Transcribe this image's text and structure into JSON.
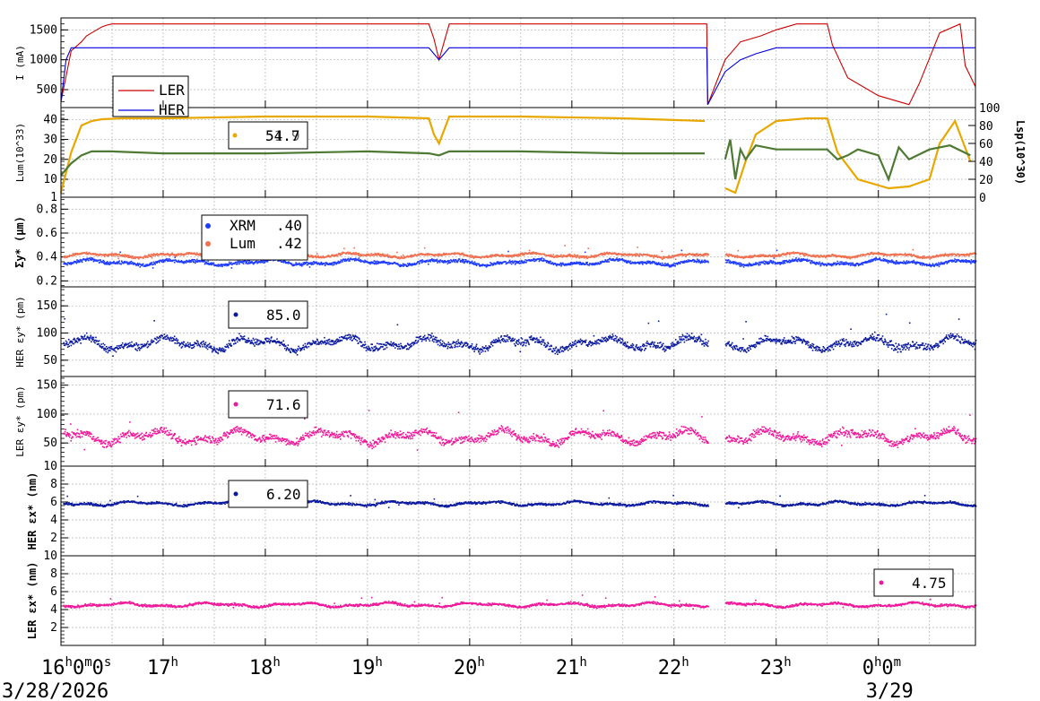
{
  "chart_data": [
    {
      "type": "line",
      "panel": "current",
      "ylabel": "I (mA)",
      "yticks": [
        500,
        1000,
        1500
      ],
      "ylim": [
        200,
        1700
      ],
      "series": [
        {
          "name": "LER",
          "color": "#cc0000",
          "x": [
            16.0,
            16.1,
            16.2,
            16.25,
            16.3,
            16.35,
            16.4,
            16.45,
            16.5,
            16.7,
            19.6,
            19.65,
            19.7,
            19.75,
            19.8,
            22.32,
            22.33,
            22.5,
            22.65,
            22.85,
            23.0,
            23.2,
            23.5,
            23.55,
            23.7,
            24.0,
            24.3,
            24.4,
            24.6,
            24.8,
            24.85,
            24.95
          ],
          "y": [
            300,
            1150,
            1300,
            1400,
            1450,
            1500,
            1550,
            1580,
            1600,
            1600,
            1600,
            1350,
            1000,
            1300,
            1600,
            1600,
            250,
            1000,
            1300,
            1400,
            1500,
            1600,
            1600,
            1250,
            700,
            400,
            250,
            600,
            1450,
            1600,
            900,
            550
          ]
        },
        {
          "name": "HER",
          "color": "#0000dd",
          "x": [
            16.0,
            16.05,
            16.1,
            16.2,
            16.25,
            19.6,
            19.65,
            19.7,
            19.75,
            19.8,
            22.32,
            22.33,
            22.5,
            22.65,
            22.8,
            23.0,
            24.95
          ],
          "y": [
            300,
            1000,
            1200,
            1200,
            1200,
            1200,
            1100,
            1000,
            1100,
            1200,
            1200,
            250,
            800,
            1000,
            1100,
            1200,
            1200
          ]
        }
      ]
    },
    {
      "type": "line",
      "panel": "luminosity",
      "ylabel": "Lum(10^33)",
      "yticks": [
        1,
        10,
        20,
        30,
        40
      ],
      "ylim": [
        1,
        46
      ],
      "y2label": "Lsp(10^30)",
      "y2ticks": [
        0,
        20,
        40,
        60,
        80,
        100
      ],
      "legend_values": [
        "54.7",
        "51.9"
      ],
      "series": [
        {
          "name": "Lsp",
          "color": "#e8a800",
          "axis": "right",
          "x": [
            16.0,
            16.1,
            16.2,
            16.3,
            16.4,
            16.6,
            17.0,
            18.0,
            19.0,
            19.6,
            19.65,
            19.7,
            19.8,
            20.5,
            21.5,
            22.3
          ],
          "y": [
            5,
            50,
            80,
            85,
            87,
            88,
            88,
            90,
            90,
            88,
            70,
            60,
            90,
            90,
            88,
            85
          ]
        },
        {
          "name": "Lum",
          "color": "#4e7a33",
          "axis": "left",
          "x": [
            16.0,
            16.1,
            16.2,
            16.3,
            16.5,
            17.0,
            18.0,
            19.0,
            19.6,
            19.7,
            19.8,
            20.5,
            21.5,
            22.3
          ],
          "y": [
            12,
            18,
            22,
            24,
            24,
            23,
            23,
            24,
            23,
            22,
            24,
            24,
            23,
            23
          ]
        },
        {
          "name": "Lsp-b",
          "color": "#e8a800",
          "axis": "right",
          "x": [
            22.5,
            22.6,
            22.7,
            22.8,
            23.0,
            23.3,
            23.5,
            23.6,
            23.8,
            24.1,
            24.3,
            24.5,
            24.6,
            24.75,
            24.9
          ],
          "y": [
            10,
            5,
            40,
            70,
            85,
            88,
            88,
            50,
            20,
            10,
            12,
            20,
            60,
            85,
            40
          ]
        },
        {
          "name": "Lum-b",
          "color": "#4e7a33",
          "axis": "left",
          "x": [
            22.5,
            22.55,
            22.6,
            22.65,
            22.7,
            22.8,
            23.0,
            23.5,
            23.6,
            23.7,
            23.8,
            24.0,
            24.1,
            24.2,
            24.3,
            24.5,
            24.7,
            24.9
          ],
          "y": [
            20,
            30,
            10,
            25,
            20,
            27,
            25,
            25,
            20,
            22,
            25,
            22,
            10,
            26,
            20,
            25,
            27,
            22
          ]
        }
      ]
    },
    {
      "type": "scatter",
      "panel": "sigma_y",
      "ylabel": "Σy* (µm)",
      "yticks": [
        0.2,
        0.4,
        0.6,
        0.8
      ],
      "ylim": [
        0.15,
        0.9
      ],
      "series": [
        {
          "name": "XRM",
          "color": "#1f3cff",
          "value": ".40",
          "base": 0.36,
          "noise": 0.02
        },
        {
          "name": "Lum",
          "color": "#f07050",
          "value": ".42",
          "base": 0.42,
          "noise": 0.015
        }
      ]
    },
    {
      "type": "scatter",
      "panel": "her_eps_y",
      "ylabel": "HER εy* (pm)",
      "yticks": [
        50,
        100,
        150
      ],
      "ylim": [
        20,
        185
      ],
      "value": "85.0",
      "series": [
        {
          "name": "HER εy*",
          "color": "#0b1a9e",
          "base": 82,
          "noise": 10
        }
      ]
    },
    {
      "type": "scatter",
      "panel": "ler_eps_y",
      "ylabel": "LER εy* (pm)",
      "yticks": [
        10,
        50,
        100,
        150
      ],
      "ylim": [
        10,
        165
      ],
      "value": "71.6",
      "series": [
        {
          "name": "LER εy*",
          "color": "#f0189a",
          "base": 62,
          "noise": 10
        }
      ]
    },
    {
      "type": "scatter",
      "panel": "her_eps_x",
      "ylabel": "HER εx* (nm)",
      "yticks": [
        2,
        4,
        6,
        8
      ],
      "ylim": [
        0,
        10
      ],
      "value": "6.20",
      "series": [
        {
          "name": "HER εx*",
          "color": "#0b1a9e",
          "base": 5.9,
          "noise": 0.2
        }
      ]
    },
    {
      "type": "scatter",
      "panel": "ler_eps_x",
      "ylabel": "LER εx* (nm)",
      "yticks": [
        2,
        4,
        6,
        8,
        10
      ],
      "ylim": [
        0,
        10
      ],
      "value": "4.75",
      "series": [
        {
          "name": "LER εx*",
          "color": "#f0189a",
          "base": 4.6,
          "noise": 0.2
        }
      ]
    }
  ],
  "x_axis": {
    "range_hours": [
      16.0,
      24.95
    ],
    "tick_labels": [
      {
        "x": 16,
        "main": "16",
        "sup": "h",
        "rest": "0",
        "sup2": "m",
        "rest2": "0",
        "sup3": "s"
      },
      {
        "x": 17,
        "main": "17",
        "sup": "h"
      },
      {
        "x": 18,
        "main": "18",
        "sup": "h"
      },
      {
        "x": 19,
        "main": "19",
        "sup": "h"
      },
      {
        "x": 20,
        "main": "20",
        "sup": "h"
      },
      {
        "x": 21,
        "main": "21",
        "sup": "h"
      },
      {
        "x": 22,
        "main": "22",
        "sup": "h"
      },
      {
        "x": 23,
        "main": "23",
        "sup": "h"
      },
      {
        "x": 24,
        "main": "0",
        "sup": "h",
        "rest": "0",
        "sup2": "m"
      }
    ],
    "dates": [
      {
        "x": 16,
        "label": "3/28/2026"
      },
      {
        "x": 24,
        "label": "3/29"
      }
    ],
    "gap": [
      22.33,
      22.5
    ]
  },
  "legend_current": [
    {
      "label": "LER",
      "color": "#cc0000"
    },
    {
      "label": "HER",
      "color": "#0000dd"
    }
  ]
}
